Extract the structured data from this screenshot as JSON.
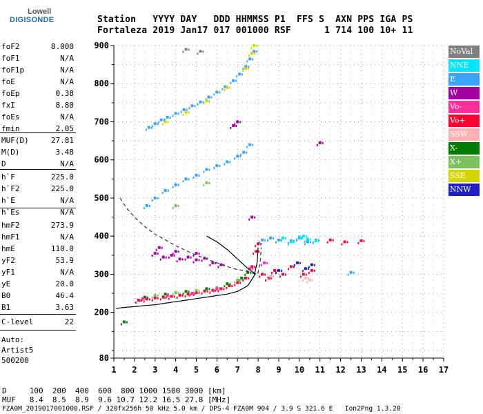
{
  "logo": {
    "line1": "Lowell",
    "line2": "DIGISONDE"
  },
  "header": {
    "row1": "Station   YYYY DAY   DDD HHMMSS P1  FFS S  AXN PPS IGA PS",
    "row2": "Fortaleza 2019 Jan17 017 001000 RSF      1 714 100 10+ 11"
  },
  "params_block1": [
    {
      "name": "foF2",
      "value": "8.000"
    },
    {
      "name": "foF1",
      "value": "N/A"
    },
    {
      "name": "foF1p",
      "value": "N/A"
    },
    {
      "name": "foE",
      "value": "N/A"
    },
    {
      "name": "foEp",
      "value": "0.38"
    },
    {
      "name": "fxI",
      "value": "8.80"
    },
    {
      "name": "foEs",
      "value": "N/A"
    },
    {
      "name": "fmin",
      "value": "2.05"
    }
  ],
  "params_block2": [
    {
      "name": "MUF(D)",
      "value": "27.81"
    },
    {
      "name": "M(D)",
      "value": "3.48"
    },
    {
      "name": "D",
      "value": "N/A"
    }
  ],
  "params_block3": [
    {
      "name": "h`F",
      "value": "225.0"
    },
    {
      "name": "h`F2",
      "value": "225.0"
    },
    {
      "name": "h`E",
      "value": "N/A"
    },
    {
      "name": "h`Es",
      "value": "N/A"
    }
  ],
  "params_block4": [
    {
      "name": "hmF2",
      "value": "273.9"
    },
    {
      "name": "hmF1",
      "value": "N/A"
    },
    {
      "name": "hmE",
      "value": "110.0"
    },
    {
      "name": "yF2",
      "value": "53.9"
    },
    {
      "name": "yF1",
      "value": "N/A"
    },
    {
      "name": "yE",
      "value": "20.0"
    },
    {
      "name": "B0",
      "value": "46.4"
    },
    {
      "name": "B1",
      "value": "3.63"
    }
  ],
  "params_block5": [
    {
      "name": "C-level",
      "value": "22"
    }
  ],
  "auto": {
    "line1": "Auto:",
    "line2": "Artist5",
    "line3": "500200"
  },
  "legend": [
    {
      "label": "NoVal",
      "color": "#808080"
    },
    {
      "label": "NNE",
      "color": "#00e5ff"
    },
    {
      "label": "E",
      "color": "#3aa3ff"
    },
    {
      "label": "W",
      "color": "#a000a0"
    },
    {
      "label": "Vo-",
      "color": "#ff2f9a"
    },
    {
      "label": "Vo+",
      "color": "#ff0033"
    },
    {
      "label": "SSW",
      "color": "#ffb0b0"
    },
    {
      "label": "X-",
      "color": "#007a00"
    },
    {
      "label": "X+",
      "color": "#7cc060"
    },
    {
      "label": "SSE",
      "color": "#d4d400"
    },
    {
      "label": "NNW",
      "color": "#2020c0"
    }
  ],
  "footer": {
    "line1": "D     100  200  400  600  800 1000 1500 3000 [km]",
    "line2": "MUF   8.4  8.5  8.9  9.6 10.7 12.2 16.5 27.8 [MHz]",
    "line3": "FZA0M_2019017001000.RSF / 320fx256h 50 kHz 5.0 km / DPS-4 FZA0M 904 / 3.9 S 321.6 E   Ion2Png 1.3.20"
  },
  "chart_data": {
    "type": "scatter",
    "xlabel": "",
    "ylabel": "",
    "xlim": [
      1,
      17
    ],
    "ylim": [
      80,
      900
    ],
    "xticks": [
      1,
      2,
      3,
      4,
      5,
      6,
      7,
      8,
      9,
      10,
      11,
      12,
      13,
      14,
      15,
      16,
      17
    ],
    "yticks": [
      80,
      200,
      300,
      400,
      500,
      600,
      700,
      800,
      900
    ],
    "grid": true,
    "series": [
      {
        "name": "E",
        "color": "#3aa3ff",
        "points": [
          [
            2.7,
            685
          ],
          [
            3.0,
            695
          ],
          [
            3.3,
            705
          ],
          [
            3.6,
            712
          ],
          [
            4.0,
            722
          ],
          [
            4.4,
            732
          ],
          [
            4.8,
            742
          ],
          [
            5.2,
            752
          ],
          [
            5.6,
            765
          ],
          [
            6.0,
            778
          ],
          [
            6.4,
            792
          ],
          [
            6.8,
            808
          ],
          [
            7.1,
            825
          ],
          [
            7.4,
            845
          ],
          [
            7.6,
            865
          ],
          [
            7.8,
            885
          ],
          [
            2.6,
            480
          ],
          [
            3.0,
            500
          ],
          [
            3.5,
            520
          ],
          [
            4.0,
            535
          ],
          [
            4.5,
            550
          ],
          [
            5.0,
            560
          ],
          [
            5.5,
            575
          ],
          [
            6.0,
            585
          ],
          [
            6.5,
            595
          ],
          [
            7.0,
            610
          ],
          [
            7.3,
            620
          ],
          [
            7.6,
            640
          ],
          [
            8.2,
            390
          ],
          [
            8.6,
            395
          ],
          [
            9.0,
            390
          ],
          [
            9.6,
            388
          ],
          [
            10.0,
            395
          ],
          [
            10.4,
            385
          ],
          [
            10.8,
            390
          ],
          [
            12.5,
            305
          ]
        ]
      },
      {
        "name": "W",
        "color": "#a000a0",
        "points": [
          [
            3.0,
            355
          ],
          [
            3.4,
            345
          ],
          [
            3.8,
            350
          ],
          [
            4.2,
            340
          ],
          [
            4.6,
            345
          ],
          [
            5.0,
            338
          ],
          [
            5.4,
            342
          ],
          [
            5.8,
            330
          ],
          [
            6.2,
            325
          ],
          [
            3.2,
            370
          ],
          [
            4.0,
            360
          ],
          [
            5.0,
            355
          ],
          [
            6.8,
            690
          ],
          [
            7.0,
            700
          ],
          [
            7.7,
            450
          ],
          [
            11.0,
            645
          ]
        ]
      },
      {
        "name": "Vo+",
        "color": "#ff0033",
        "points": [
          [
            2.2,
            232
          ],
          [
            2.6,
            235
          ],
          [
            3.0,
            238
          ],
          [
            3.4,
            240
          ],
          [
            3.8,
            242
          ],
          [
            4.2,
            245
          ],
          [
            4.6,
            248
          ],
          [
            5.0,
            252
          ],
          [
            5.4,
            256
          ],
          [
            5.8,
            258
          ],
          [
            6.2,
            262
          ],
          [
            6.6,
            270
          ],
          [
            7.0,
            278
          ],
          [
            7.4,
            290
          ],
          [
            7.7,
            320
          ],
          [
            7.9,
            360
          ],
          [
            8.0,
            380
          ],
          [
            8.2,
            300
          ],
          [
            8.5,
            290
          ],
          [
            8.8,
            310
          ],
          [
            9.2,
            300
          ],
          [
            9.6,
            320
          ],
          [
            10.2,
            300
          ],
          [
            10.6,
            310
          ],
          [
            11.5,
            390
          ],
          [
            12.2,
            385
          ],
          [
            13.0,
            388
          ]
        ]
      },
      {
        "name": "X-",
        "color": "#007a00",
        "points": [
          [
            2.5,
            240
          ],
          [
            3.5,
            248
          ],
          [
            4.5,
            255
          ],
          [
            5.5,
            262
          ],
          [
            6.5,
            275
          ],
          [
            7.2,
            290
          ],
          [
            7.5,
            305
          ],
          [
            1.5,
            175
          ]
        ]
      },
      {
        "name": "X+",
        "color": "#7cc060",
        "points": [
          [
            3.0,
            245
          ],
          [
            4.0,
            252
          ],
          [
            5.0,
            258
          ],
          [
            6.0,
            265
          ],
          [
            7.0,
            285
          ],
          [
            4.0,
            480
          ],
          [
            5.5,
            540
          ]
        ]
      },
      {
        "name": "SSE",
        "color": "#d4d400",
        "points": [
          [
            3.5,
            700
          ],
          [
            4.5,
            725
          ],
          [
            5.5,
            755
          ],
          [
            6.5,
            790
          ],
          [
            7.4,
            840
          ],
          [
            7.7,
            880
          ],
          [
            7.8,
            900
          ]
        ]
      },
      {
        "name": "NNE",
        "color": "#00e5ff",
        "points": [
          [
            9.2,
            395
          ],
          [
            9.6,
            385
          ],
          [
            10.0,
            398
          ],
          [
            10.4,
            392
          ],
          [
            10.8,
            388
          ],
          [
            10.2,
            400
          ]
        ]
      },
      {
        "name": "NNW",
        "color": "#2020c0",
        "points": [
          [
            9.9,
            330
          ],
          [
            10.3,
            315
          ],
          [
            10.6,
            325
          ],
          [
            9.0,
            310
          ]
        ]
      },
      {
        "name": "SSW",
        "color": "#ffb0b0",
        "points": [
          [
            10.3,
            290
          ],
          [
            10.5,
            285
          ],
          [
            8.6,
            295
          ]
        ]
      },
      {
        "name": "Vo-",
        "color": "#ff2f9a",
        "points": [
          [
            2.4,
            236
          ],
          [
            3.6,
            244
          ],
          [
            4.8,
            250
          ],
          [
            6.0,
            262
          ],
          [
            7.6,
            315
          ],
          [
            8.3,
            330
          ]
        ]
      },
      {
        "name": "NoVal",
        "color": "#808080",
        "points": [
          [
            4.5,
            890
          ],
          [
            5.2,
            885
          ]
        ]
      }
    ],
    "curves": [
      {
        "style": "dashed",
        "color": "#333333",
        "points": [
          [
            1.3,
            500
          ],
          [
            1.6,
            475
          ],
          [
            2.0,
            450
          ],
          [
            2.5,
            425
          ],
          [
            3.0,
            405
          ],
          [
            3.5,
            390
          ],
          [
            4.0,
            375
          ],
          [
            4.5,
            362
          ],
          [
            5.0,
            350
          ],
          [
            5.5,
            340
          ],
          [
            6.0,
            330
          ],
          [
            6.5,
            320
          ],
          [
            7.0,
            312
          ],
          [
            7.3,
            310
          ],
          [
            7.6,
            305
          ],
          [
            7.9,
            300
          ],
          [
            8.0,
            305
          ],
          [
            8.1,
            330
          ],
          [
            8.15,
            370
          ]
        ]
      },
      {
        "style": "solid",
        "color": "#000000",
        "points": [
          [
            1.1,
            210
          ],
          [
            1.5,
            213
          ],
          [
            2.0,
            215
          ],
          [
            2.5,
            218
          ],
          [
            3.0,
            220
          ],
          [
            3.5,
            224
          ],
          [
            4.0,
            228
          ],
          [
            4.5,
            232
          ],
          [
            5.0,
            236
          ],
          [
            5.5,
            240
          ],
          [
            6.0,
            244
          ],
          [
            6.5,
            248
          ],
          [
            7.0,
            255
          ],
          [
            7.5,
            270
          ],
          [
            7.8,
            295
          ],
          [
            7.95,
            330
          ],
          [
            8.0,
            370
          ]
        ]
      },
      {
        "style": "solid",
        "color": "#000000",
        "points": [
          [
            5.5,
            400
          ],
          [
            6.0,
            385
          ],
          [
            6.5,
            365
          ],
          [
            7.0,
            340
          ],
          [
            7.5,
            315
          ],
          [
            7.9,
            300
          ]
        ]
      }
    ]
  }
}
